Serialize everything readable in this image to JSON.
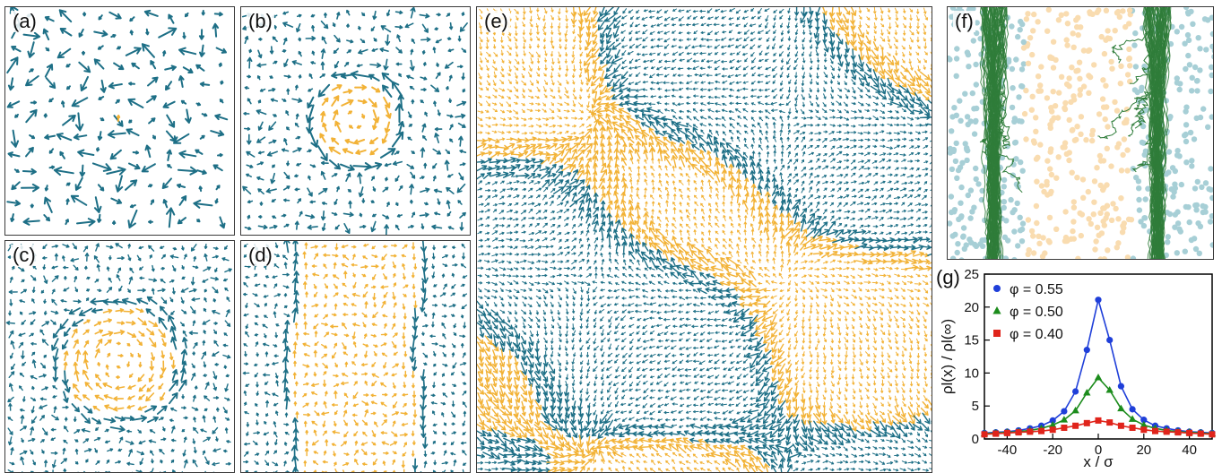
{
  "panels": {
    "a": {
      "label": "(a)"
    },
    "b": {
      "label": "(b)"
    },
    "c": {
      "label": "(c)"
    },
    "d": {
      "label": "(d)"
    },
    "e": {
      "label": "(e)"
    },
    "f": {
      "label": "(f)"
    },
    "g": {
      "label": "(g)"
    }
  },
  "colors": {
    "teal": "#1d6f86",
    "orange": "#f2b236",
    "green": "#2f7d3a",
    "light_teal": "#a7cfd6",
    "light_orange": "#f9dcb0",
    "blue": "#1f3fd9",
    "red": "#e0241b"
  },
  "chart_data": {
    "type": "line",
    "xlabel": "x / σ",
    "ylabel": "ρl(x) / ρl(∞)",
    "xlim": [
      -50,
      50
    ],
    "ylim": [
      0,
      25
    ],
    "xticks": [
      -40,
      -20,
      0,
      20,
      40
    ],
    "yticks": [
      0,
      5,
      10,
      15,
      20,
      25
    ],
    "legend_position": "top-left",
    "series": [
      {
        "name": "φ = 0.55",
        "color": "#1f3fd9",
        "marker": "circle",
        "x": [
          -50,
          -45,
          -40,
          -35,
          -30,
          -25,
          -20,
          -15,
          -10,
          -5,
          0,
          5,
          10,
          15,
          20,
          25,
          30,
          35,
          40,
          45,
          50
        ],
        "y": [
          0.9,
          1.0,
          1.1,
          1.3,
          1.6,
          2.0,
          2.8,
          4.2,
          7.2,
          13.5,
          21.1,
          15.0,
          8.0,
          4.5,
          2.9,
          2.0,
          1.6,
          1.3,
          1.1,
          1.0,
          0.9
        ]
      },
      {
        "name": "φ = 0.50",
        "color": "#1c8c1c",
        "marker": "triangle",
        "x": [
          -50,
          -45,
          -40,
          -35,
          -30,
          -25,
          -20,
          -15,
          -10,
          -5,
          0,
          5,
          10,
          15,
          20,
          25,
          30,
          35,
          40,
          45,
          50
        ],
        "y": [
          0.8,
          0.9,
          1.0,
          1.1,
          1.3,
          1.6,
          2.1,
          2.9,
          4.3,
          7.0,
          9.3,
          7.4,
          4.6,
          3.0,
          2.1,
          1.6,
          1.3,
          1.1,
          1.0,
          0.9,
          0.8
        ]
      },
      {
        "name": "φ = 0.40",
        "color": "#e0241b",
        "marker": "square",
        "x": [
          -50,
          -45,
          -40,
          -35,
          -30,
          -25,
          -20,
          -15,
          -10,
          -5,
          0,
          5,
          10,
          15,
          20,
          25,
          30,
          35,
          40,
          45,
          50
        ],
        "y": [
          0.7,
          0.8,
          0.9,
          1.0,
          1.1,
          1.2,
          1.4,
          1.7,
          2.0,
          2.4,
          2.8,
          2.5,
          2.0,
          1.7,
          1.4,
          1.2,
          1.1,
          1.0,
          0.9,
          0.8,
          0.7
        ]
      }
    ]
  }
}
